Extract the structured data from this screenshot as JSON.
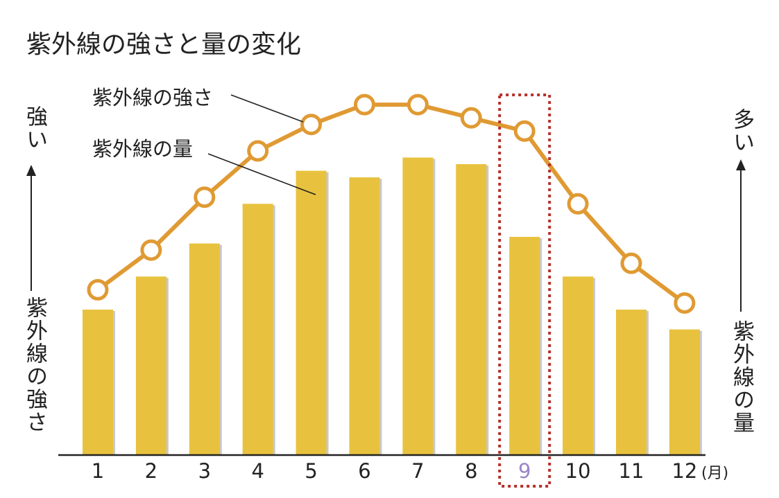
{
  "chart_data": {
    "type": "bar",
    "title": "紫外線の強さと量の変化",
    "categories": [
      "1",
      "2",
      "3",
      "4",
      "5",
      "6",
      "7",
      "8",
      "9",
      "10",
      "11",
      "12"
    ],
    "x_unit": "(月)",
    "series": [
      {
        "name": "紫外線の量",
        "type": "bar",
        "axis": "right",
        "values": [
          22,
          27,
          32,
          38,
          43,
          42,
          45,
          44,
          33,
          27,
          22,
          19
        ],
        "color": "#e8c23e"
      },
      {
        "name": "紫外線の強さ",
        "type": "line",
        "axis": "left",
        "values": [
          25,
          31,
          39,
          46,
          50,
          53,
          53,
          51,
          49,
          38,
          29,
          23
        ],
        "color": "#e09a33"
      }
    ],
    "ylim": [
      0,
      55
    ],
    "left_axis": {
      "label": "紫外線の強さ",
      "top_label": "強い"
    },
    "right_axis": {
      "label": "紫外線の量",
      "top_label": "多い"
    },
    "highlight": {
      "category": "9",
      "color": "#b5302a",
      "label_color": "#9b86c6"
    },
    "grid": false
  }
}
